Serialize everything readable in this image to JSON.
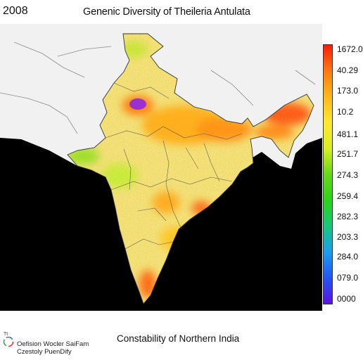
{
  "header": {
    "year": "2008",
    "title": "Genenic Diversity of Theileria Antulata"
  },
  "map": {
    "region": "India",
    "land_color": "#f0eec8",
    "ocean_color": "#000000",
    "neighbor_color": "#f1f1f1",
    "hotspot_color": "#9b30d0"
  },
  "legend": {
    "colors": [
      "#ff1a0a",
      "#ff7a10",
      "#ffb81a",
      "#ffe830",
      "#d7f020",
      "#66d81a",
      "#2bd41a",
      "#18c87c",
      "#1a9ef0",
      "#2255f5",
      "#5a10e8"
    ],
    "ticks": [
      "1672.0",
      "40.29",
      "173.0",
      "10.2",
      "481.1",
      "251.7",
      "274.3",
      "259.4",
      "282.3",
      "203.3",
      "284.0",
      "079.0",
      "0000"
    ]
  },
  "footer": {
    "subtitle": "Constability of Northern India",
    "logo_mark": "Tt",
    "credit_line1": "Oefision Wocler SaiFam",
    "credit_line2": "Czestoly PuenDify"
  }
}
